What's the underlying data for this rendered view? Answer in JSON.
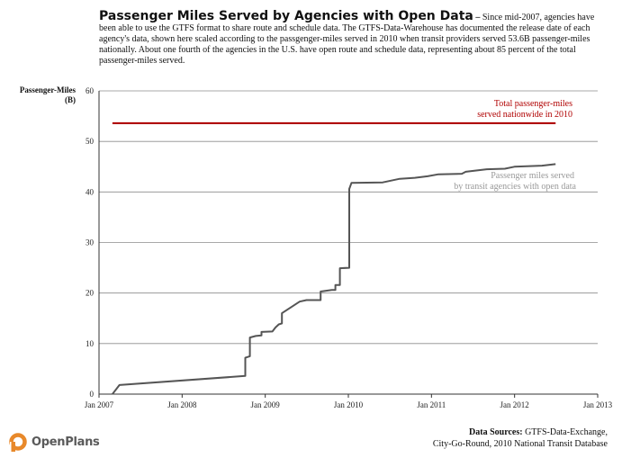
{
  "header": {
    "title": "Passenger Miles Served by Agencies with Open Data",
    "separator": "–",
    "description": "Since mid-2007, agencies have been able to use the GTFS format to share route and schedule data. The GTFS-Data-Warehouse  has documented the release date of each agency's data,  shown here scaled according to the passgenger-miles served  in 2010 when transit providers served 53.6B  passenger-miles nationally. About one fourth of the agencies in the U.S.  have open  route and schedule data, representing about 85 percent of the total passenger-miles served."
  },
  "source": {
    "label": "Data Sources:",
    "text_line1": "GTFS-Data-Exchange,",
    "text_line2": "City-Go-Round, 2010 National Transit Database"
  },
  "logo": {
    "icon": "openplans-logo-icon",
    "text": "OpenPlans",
    "color": "#e8892b"
  },
  "chart_data": {
    "type": "line",
    "ylabel_line1": "Passenger-Miles",
    "ylabel_line2": "(B)",
    "ylim": [
      0,
      60
    ],
    "yticks": [
      "0",
      "10",
      "20",
      "30",
      "40",
      "50",
      "60"
    ],
    "xlim": [
      "2007-01-01",
      "2013-01-01"
    ],
    "xticks": [
      "Jan 2007",
      "Jan 2008",
      "Jan 2009",
      "Jan 2010",
      "Jan 2011",
      "Jan 2012",
      "Jan 2013"
    ],
    "grid": "horizontal",
    "reference_line": {
      "value": 53.6,
      "x_start": "2007-03-01",
      "x_end": "2012-06-30",
      "color": "#b00000",
      "label_line1": "Total passenger-miles",
      "label_line2": "served nationwide in 2010"
    },
    "series": [
      {
        "color": "#555555",
        "label_line1": "Passenger miles served",
        "label_line2": "by transit agencies with open data",
        "label_color": "#999999",
        "points": [
          [
            "2007-03-01",
            0.0
          ],
          [
            "2007-04-01",
            1.8
          ],
          [
            "2008-10-05",
            3.6
          ],
          [
            "2008-10-05",
            7.2
          ],
          [
            "2008-10-25",
            7.5
          ],
          [
            "2008-10-25",
            11.2
          ],
          [
            "2008-11-20",
            11.5
          ],
          [
            "2008-12-15",
            11.6
          ],
          [
            "2008-12-15",
            12.3
          ],
          [
            "2009-02-01",
            12.4
          ],
          [
            "2009-02-15",
            13.2
          ],
          [
            "2009-03-01",
            13.8
          ],
          [
            "2009-03-15",
            14.0
          ],
          [
            "2009-03-15",
            16.0
          ],
          [
            "2009-06-01",
            18.3
          ],
          [
            "2009-07-01",
            18.6
          ],
          [
            "2009-09-01",
            18.6
          ],
          [
            "2009-09-01",
            20.3
          ],
          [
            "2009-10-20",
            20.6
          ],
          [
            "2009-11-05",
            20.6
          ],
          [
            "2009-11-05",
            21.6
          ],
          [
            "2009-11-25",
            21.6
          ],
          [
            "2009-11-25",
            24.9
          ],
          [
            "2010-01-05",
            25.0
          ],
          [
            "2010-01-05",
            40.6
          ],
          [
            "2010-01-15",
            41.8
          ],
          [
            "2010-06-01",
            41.9
          ],
          [
            "2010-08-15",
            42.6
          ],
          [
            "2010-10-20",
            42.8
          ],
          [
            "2010-12-15",
            43.1
          ],
          [
            "2011-02-01",
            43.5
          ],
          [
            "2011-05-15",
            43.6
          ],
          [
            "2011-06-01",
            44.0
          ],
          [
            "2011-09-01",
            44.5
          ],
          [
            "2011-11-20",
            44.6
          ],
          [
            "2012-01-01",
            45.0
          ],
          [
            "2012-05-01",
            45.2
          ],
          [
            "2012-06-30",
            45.5
          ]
        ]
      }
    ]
  }
}
